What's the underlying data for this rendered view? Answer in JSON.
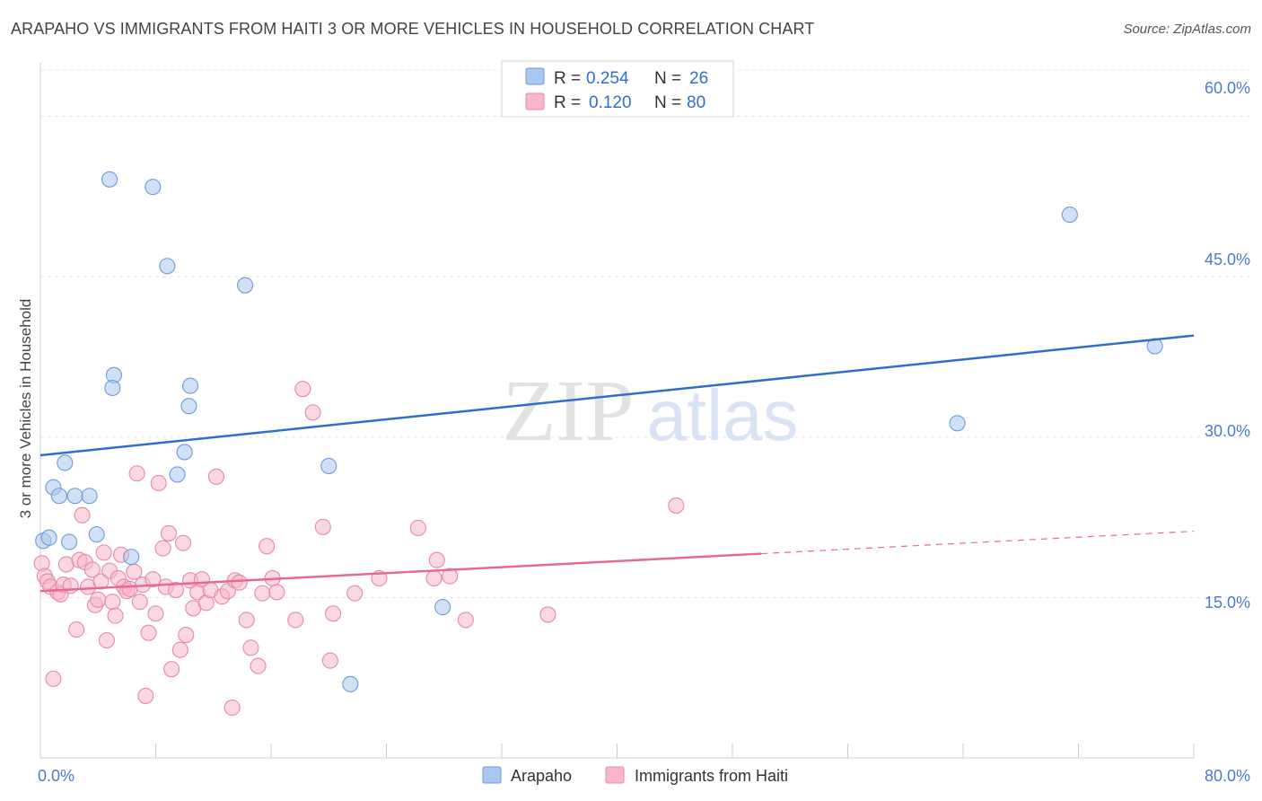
{
  "header": {
    "title": "ARAPAHO VS IMMIGRANTS FROM HAITI 3 OR MORE VEHICLES IN HOUSEHOLD CORRELATION CHART",
    "source": "Source: ZipAtlas.com"
  },
  "watermark": {
    "zip": "ZIP",
    "atlas": "atlas"
  },
  "colors": {
    "arapaho": "#a9c8f0",
    "arapaho_line": "#2f6fcb",
    "haiti": "#f7b7c9",
    "haiti_line": "#e56a93",
    "tick": "#4a7bd0"
  },
  "chart_data": {
    "type": "scatter",
    "title": "ARAPAHO VS IMMIGRANTS FROM HAITI 3 OR MORE VEHICLES IN HOUSEHOLD CORRELATION CHART",
    "xlabel": "",
    "ylabel": "3 or more Vehicles in Household",
    "xlim": [
      0,
      80
    ],
    "ylim": [
      0,
      65
    ],
    "x_tick_labels": [
      "0.0%",
      "80.0%"
    ],
    "y_ticks": [
      15,
      30,
      45,
      60
    ],
    "y_tick_labels": [
      "15.0%",
      "30.0%",
      "45.0%",
      "60.0%"
    ],
    "grid": true,
    "legend_position": "top-center",
    "legend": [
      {
        "r_label": "R =",
        "r_value": "0.254",
        "n_label": "N =",
        "n_value": "26"
      },
      {
        "r_label": "R =",
        "r_value": "0.120",
        "n_label": "N =",
        "n_value": "80"
      }
    ],
    "series": [
      {
        "name": "Arapaho",
        "points": [
          [
            0.2,
            20.3
          ],
          [
            0.6,
            20.6
          ],
          [
            0.9,
            25.3
          ],
          [
            1.3,
            24.5
          ],
          [
            1.7,
            27.6
          ],
          [
            2.0,
            20.2
          ],
          [
            2.4,
            24.5
          ],
          [
            3.4,
            24.5
          ],
          [
            3.9,
            20.9
          ],
          [
            4.8,
            54.1
          ],
          [
            5.1,
            35.8
          ],
          [
            5.0,
            34.6
          ],
          [
            6.3,
            18.8
          ],
          [
            7.8,
            53.4
          ],
          [
            8.8,
            46.0
          ],
          [
            9.5,
            26.5
          ],
          [
            10.0,
            28.6
          ],
          [
            10.3,
            32.9
          ],
          [
            10.4,
            34.8
          ],
          [
            14.2,
            44.2
          ],
          [
            20.0,
            27.3
          ],
          [
            21.5,
            6.9
          ],
          [
            27.9,
            14.1
          ],
          [
            63.6,
            31.3
          ],
          [
            71.4,
            50.8
          ],
          [
            77.3,
            38.5
          ]
        ],
        "trend": {
          "x0": 0,
          "y0": 28.3,
          "x1": 80,
          "y1": 39.5
        }
      },
      {
        "name": "Immigrants from Haiti",
        "points": [
          [
            0.1,
            18.2
          ],
          [
            0.3,
            17.0
          ],
          [
            0.5,
            16.5
          ],
          [
            0.7,
            16.0
          ],
          [
            0.9,
            7.4
          ],
          [
            1.2,
            15.5
          ],
          [
            1.4,
            15.3
          ],
          [
            1.6,
            16.2
          ],
          [
            1.8,
            18.1
          ],
          [
            2.1,
            16.1
          ],
          [
            2.5,
            12.0
          ],
          [
            2.7,
            18.5
          ],
          [
            2.9,
            22.7
          ],
          [
            3.1,
            18.3
          ],
          [
            3.3,
            16.0
          ],
          [
            3.6,
            17.6
          ],
          [
            3.8,
            14.3
          ],
          [
            4.0,
            14.8
          ],
          [
            4.2,
            16.5
          ],
          [
            4.4,
            19.2
          ],
          [
            4.6,
            11.0
          ],
          [
            4.8,
            17.5
          ],
          [
            5.0,
            14.6
          ],
          [
            5.2,
            13.3
          ],
          [
            5.4,
            16.8
          ],
          [
            5.6,
            19.0
          ],
          [
            5.8,
            16.0
          ],
          [
            6.0,
            15.6
          ],
          [
            6.2,
            15.8
          ],
          [
            6.5,
            17.4
          ],
          [
            6.7,
            26.6
          ],
          [
            6.9,
            14.6
          ],
          [
            7.1,
            16.2
          ],
          [
            7.3,
            5.8
          ],
          [
            7.5,
            11.7
          ],
          [
            7.8,
            16.7
          ],
          [
            8.0,
            13.5
          ],
          [
            8.2,
            25.7
          ],
          [
            8.5,
            19.6
          ],
          [
            8.7,
            16.0
          ],
          [
            8.9,
            21.0
          ],
          [
            9.1,
            8.3
          ],
          [
            9.4,
            15.7
          ],
          [
            9.7,
            10.1
          ],
          [
            9.9,
            20.1
          ],
          [
            10.1,
            11.5
          ],
          [
            10.4,
            16.6
          ],
          [
            10.6,
            14.0
          ],
          [
            10.9,
            15.5
          ],
          [
            11.2,
            16.7
          ],
          [
            11.5,
            14.5
          ],
          [
            11.8,
            15.7
          ],
          [
            12.2,
            26.3
          ],
          [
            12.6,
            15.1
          ],
          [
            13.0,
            15.6
          ],
          [
            13.3,
            4.7
          ],
          [
            13.5,
            16.6
          ],
          [
            13.8,
            16.4
          ],
          [
            14.3,
            12.9
          ],
          [
            14.6,
            10.3
          ],
          [
            15.1,
            8.6
          ],
          [
            15.4,
            15.4
          ],
          [
            15.7,
            19.8
          ],
          [
            16.1,
            16.8
          ],
          [
            16.4,
            15.5
          ],
          [
            17.7,
            12.9
          ],
          [
            18.2,
            34.5
          ],
          [
            18.9,
            32.3
          ],
          [
            19.6,
            21.6
          ],
          [
            20.1,
            9.1
          ],
          [
            20.3,
            13.5
          ],
          [
            21.8,
            15.4
          ],
          [
            23.5,
            16.8
          ],
          [
            26.2,
            21.5
          ],
          [
            27.3,
            16.8
          ],
          [
            27.5,
            18.5
          ],
          [
            28.4,
            17.0
          ],
          [
            29.5,
            12.9
          ],
          [
            35.2,
            13.4
          ],
          [
            44.1,
            23.6
          ]
        ],
        "trend": {
          "x0": 0,
          "y0": 15.6,
          "x1": 50,
          "y1": 19.1,
          "dash_x1": 80,
          "dash_y1": 21.2
        }
      }
    ]
  }
}
